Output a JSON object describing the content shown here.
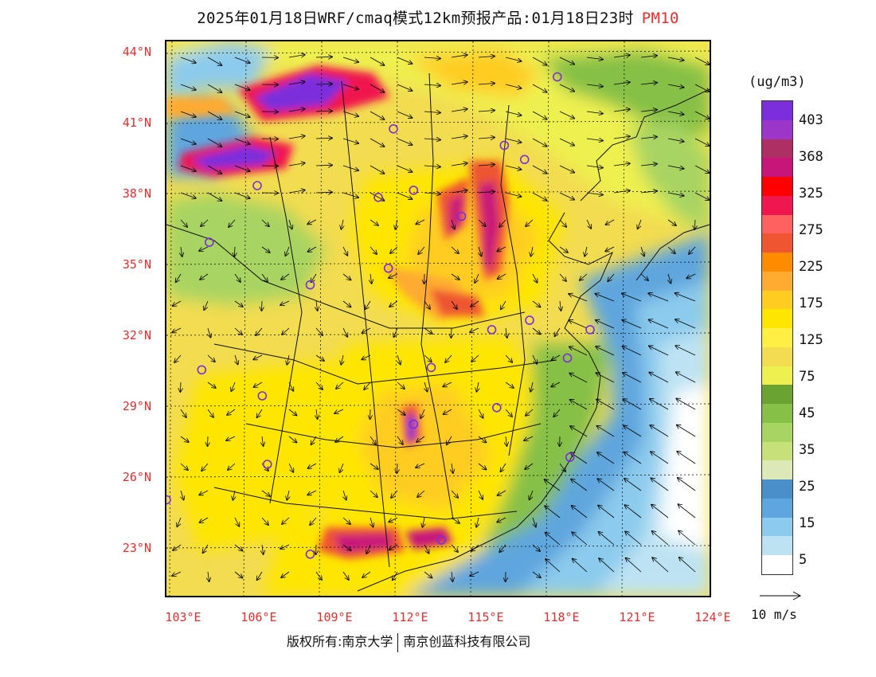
{
  "title": "2025年01月18日WRF/cmaq模式12km预报产品:01月18日23时",
  "pollutant": "PM10",
  "lat_labels": [
    "44°N",
    "41°N",
    "38°N",
    "35°N",
    "32°N",
    "29°N",
    "26°N",
    "23°N"
  ],
  "lon_labels": [
    "103°E",
    "106°E",
    "109°E",
    "112°E",
    "115°E",
    "118°E",
    "121°E",
    "124°E"
  ],
  "legend": {
    "unit": "(ug/m3)",
    "labels": [
      "403",
      "368",
      "325",
      "275",
      "225",
      "175",
      "125",
      "75",
      "45",
      "35",
      "25",
      "15",
      "5"
    ],
    "colors": [
      "#7b2fdc",
      "#9c36c9",
      "#ad3063",
      "#c8157a",
      "#ff0000",
      "#f0174e",
      "#ff6060",
      "#ee5530",
      "#ff8c00",
      "#ffaa30",
      "#ffcc22",
      "#ffe600",
      "#ffee44",
      "#f2dc50",
      "#eef050",
      "#6aa332",
      "#86c046",
      "#a8d462",
      "#c6e07a",
      "#dce9b6",
      "#4a8fca",
      "#5ea6de",
      "#8ccbed",
      "#bde3f3",
      "#ffffff"
    ]
  },
  "wind": {
    "ref_label": "10 m/s"
  },
  "footer": {
    "left": "版权所有:南京大学",
    "right": "南京创蓝科技有限公司"
  },
  "cities": [
    {
      "lon": 118.3,
      "lat": 43.0
    },
    {
      "lon": 111.8,
      "lat": 40.8
    },
    {
      "lon": 116.2,
      "lat": 40.1
    },
    {
      "lon": 117.0,
      "lat": 39.5
    },
    {
      "lon": 106.4,
      "lat": 38.4
    },
    {
      "lon": 111.2,
      "lat": 37.9
    },
    {
      "lon": 112.6,
      "lat": 38.2
    },
    {
      "lon": 114.5,
      "lat": 37.1
    },
    {
      "lon": 104.5,
      "lat": 36.0
    },
    {
      "lon": 111.6,
      "lat": 34.9
    },
    {
      "lon": 108.5,
      "lat": 34.2
    },
    {
      "lon": 115.7,
      "lat": 32.3
    },
    {
      "lon": 117.2,
      "lat": 32.7
    },
    {
      "lon": 119.6,
      "lat": 32.3
    },
    {
      "lon": 118.7,
      "lat": 31.1
    },
    {
      "lon": 113.3,
      "lat": 30.7
    },
    {
      "lon": 104.2,
      "lat": 30.6
    },
    {
      "lon": 106.6,
      "lat": 29.5
    },
    {
      "lon": 115.9,
      "lat": 29.0
    },
    {
      "lon": 112.6,
      "lat": 28.3
    },
    {
      "lon": 106.8,
      "lat": 26.6
    },
    {
      "lon": 118.8,
      "lat": 26.9
    },
    {
      "lon": 102.8,
      "lat": 25.1
    },
    {
      "lon": 108.5,
      "lat": 22.8
    },
    {
      "lon": 113.7,
      "lat": 23.4
    }
  ]
}
